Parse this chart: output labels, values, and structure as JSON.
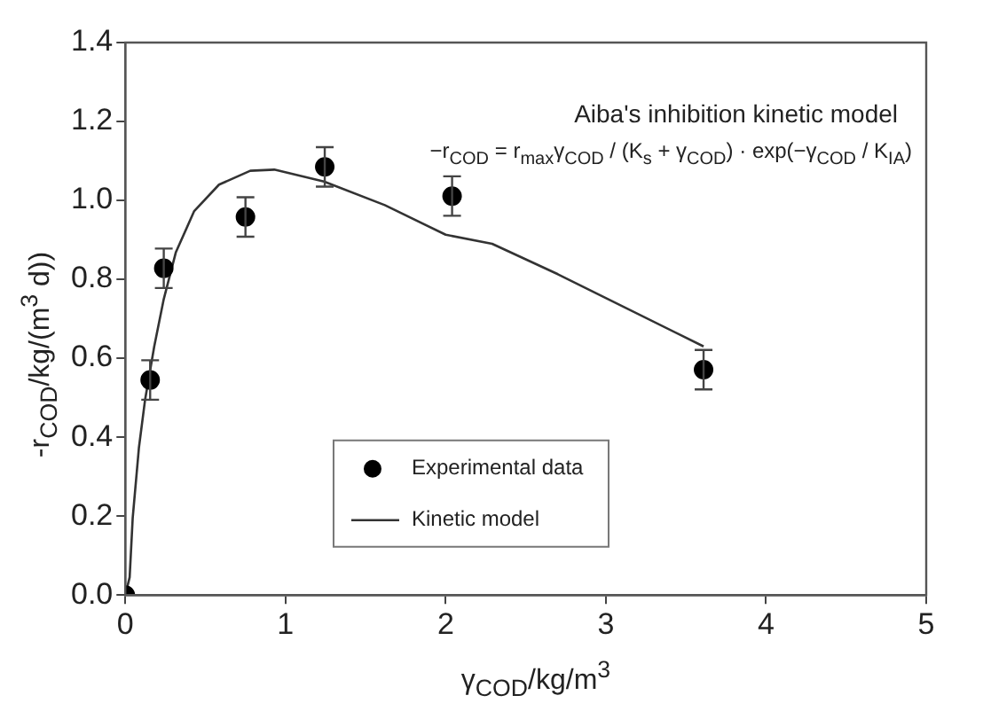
{
  "chart_data": {
    "type": "scatter",
    "xlabel": "γ$_{COD}$/kg/m$^{3}$",
    "ylabel": "-r$_{COD}$/kg/(m$^{3}$ d))",
    "annotations": [
      "Aiba's inhibition kinetic model",
      "−r$_{COD}$ = r$_{max}$γ$_{COD}$ / (K$_{s}$ + γ$_{COD}$) · exp(−γ$_{COD}$ / K$_{IA}$)"
    ],
    "xlim": [
      0,
      5
    ],
    "xticks": [
      0,
      1,
      2,
      3,
      4,
      5
    ],
    "ylim": [
      0,
      1.4
    ],
    "yticks": [
      {
        "value": 0,
        "label": "0.0"
      },
      {
        "value": 0.2,
        "label": "0.2"
      },
      {
        "value": 0.4,
        "label": "0.4"
      },
      {
        "value": 0.6,
        "label": "0.6"
      },
      {
        "value": 0.8,
        "label": "0.8"
      },
      {
        "value": 1,
        "label": "1.0"
      },
      {
        "value": 1.2,
        "label": "1.2"
      },
      {
        "value": 1.4,
        "label": "1.4"
      }
    ],
    "grid": false,
    "legend": "bottom",
    "series": [
      {
        "name": "Experimental data",
        "marker": "circle",
        "color": "#000000",
        "x": [
          0,
          0.155,
          0.24,
          0.75,
          1.245,
          2.04,
          3.61
        ],
        "values": [
          0,
          0.545,
          0.828,
          0.958,
          1.085,
          1.011,
          0.571
        ],
        "errors": [
          null,
          0.05,
          0.05,
          0.05,
          0.05,
          0.05,
          0.05
        ]
      },
      {
        "name": "Kinetic model",
        "type": "line",
        "marker": "none",
        "color": "#333333",
        "line_style": "solid",
        "x": [
          0,
          0.027,
          0.046,
          0.085,
          0.123,
          0.18,
          0.24,
          0.315,
          0.43,
          0.585,
          0.78,
          0.93,
          1.24,
          1.62,
          2.0,
          2.29,
          2.7,
          3.61
        ],
        "values": [
          0,
          0.045,
          0.195,
          0.374,
          0.494,
          0.629,
          0.75,
          0.868,
          0.973,
          1.04,
          1.075,
          1.078,
          1.048,
          0.988,
          0.913,
          0.89,
          0.813,
          0.63
        ]
      }
    ]
  }
}
